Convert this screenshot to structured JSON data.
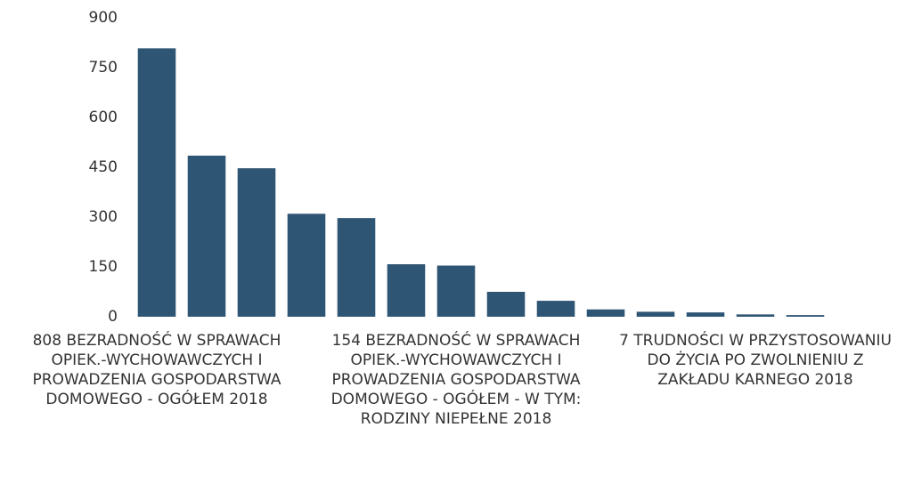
{
  "chart_data": {
    "type": "bar",
    "categories": [
      "808 BEZRADNOŚĆ W SPRAWACH OPIEK.-WYCHOWAWCZYCH I PROWADZENIA GOSPODARSTWA DOMOWEGO - OGÓŁEM 2018",
      null,
      null,
      null,
      null,
      null,
      "154 BEZRADNOŚĆ W SPRAWACH OPIEK.-WYCHOWAWCZYCH I PROWADZENIA GOSPODARSTWA DOMOWEGO - OGÓŁEM - W TYM: RODZINY NIEPEŁNE 2018",
      null,
      null,
      null,
      null,
      null,
      "7 TRUDNOŚCI W PRZYSTOSOWANIU DO ŻYCIA PO ZWOLNIENIU Z ZAKŁADU KARNEGO 2018",
      null
    ],
    "values": [
      808,
      485,
      447,
      310,
      297,
      158,
      154,
      75,
      48,
      22,
      15,
      13,
      7,
      5
    ],
    "color": "#2f5574",
    "ylim": [
      0,
      900
    ],
    "yticks": [
      0,
      150,
      300,
      450,
      600,
      750,
      900
    ],
    "grid": false
  }
}
